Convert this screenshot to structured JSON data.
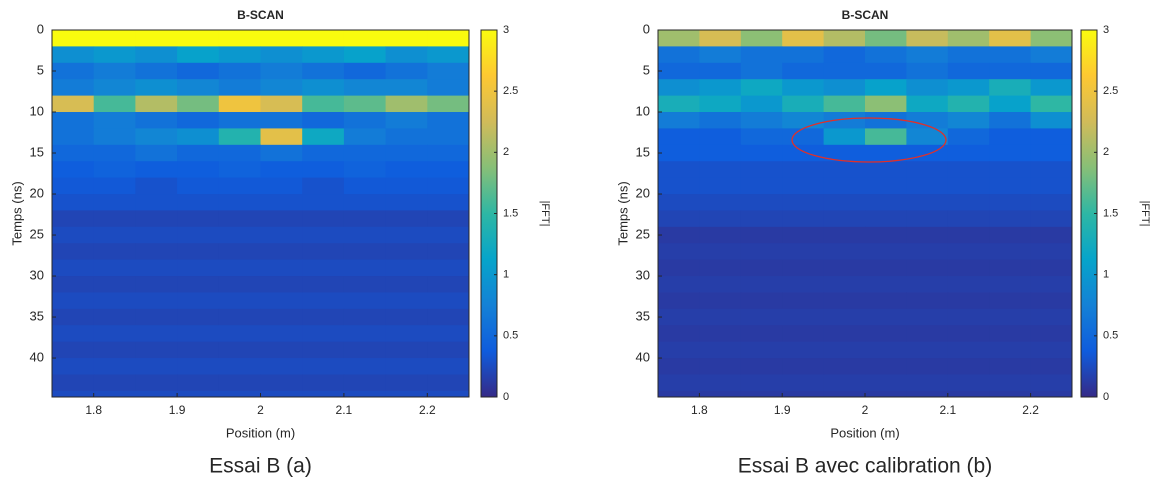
{
  "chart_data": [
    {
      "type": "heatmap",
      "title": "B-SCAN",
      "xlabel": "Position (m)",
      "ylabel": "Temps (ns)",
      "colorbar_label": "|FFT|",
      "caption": "Essai B (a)",
      "colormap": "parula",
      "y_reversed": true,
      "xlim": [
        1.75,
        2.25
      ],
      "ylim": [
        0,
        44.75
      ],
      "xticks": [
        1.8,
        1.9,
        2,
        2.1,
        2.2
      ],
      "yticks": [
        0,
        5,
        10,
        15,
        20,
        25,
        30,
        35,
        40
      ],
      "clim": [
        0,
        3
      ],
      "cticks": [
        0,
        0.5,
        1,
        1.5,
        2,
        2.5,
        3
      ],
      "x": [
        1.775,
        1.825,
        1.875,
        1.925,
        1.975,
        2.025,
        2.075,
        2.125,
        2.175,
        2.225
      ],
      "y": [
        1,
        3,
        5,
        7,
        9,
        11,
        13,
        15,
        17,
        19,
        21,
        23,
        25,
        27,
        29,
        31,
        33,
        35,
        37,
        39,
        41,
        43,
        45
      ],
      "z": [
        [
          3,
          3,
          3,
          3,
          3,
          3,
          3,
          3,
          3,
          3
        ],
        [
          0.9,
          1.0,
          0.9,
          1.1,
          1.0,
          0.9,
          1.0,
          1.1,
          0.9,
          1.0
        ],
        [
          0.6,
          0.7,
          0.6,
          0.5,
          0.6,
          0.7,
          0.6,
          0.5,
          0.6,
          0.7
        ],
        [
          0.7,
          0.8,
          0.9,
          0.8,
          0.7,
          0.8,
          0.9,
          0.8,
          0.8,
          0.7
        ],
        [
          2.3,
          1.6,
          2.1,
          1.8,
          2.5,
          2.3,
          1.6,
          1.7,
          2.0,
          1.8
        ],
        [
          0.6,
          0.7,
          0.6,
          0.5,
          0.6,
          0.6,
          0.5,
          0.6,
          0.7,
          0.6
        ],
        [
          0.6,
          0.7,
          0.8,
          0.9,
          1.4,
          2.4,
          1.2,
          0.7,
          0.6,
          0.6
        ],
        [
          0.5,
          0.5,
          0.6,
          0.5,
          0.5,
          0.6,
          0.5,
          0.5,
          0.5,
          0.5
        ],
        [
          0.4,
          0.45,
          0.4,
          0.4,
          0.45,
          0.4,
          0.4,
          0.45,
          0.4,
          0.4
        ],
        [
          0.35,
          0.35,
          0.3,
          0.35,
          0.35,
          0.35,
          0.3,
          0.35,
          0.35,
          0.35
        ],
        [
          0.3,
          0.3,
          0.3,
          0.3,
          0.3,
          0.3,
          0.3,
          0.3,
          0.3,
          0.3
        ],
        [
          0.2,
          0.2,
          0.2,
          0.2,
          0.2,
          0.2,
          0.2,
          0.2,
          0.2,
          0.2
        ],
        [
          0.25,
          0.25,
          0.25,
          0.25,
          0.25,
          0.25,
          0.25,
          0.25,
          0.25,
          0.25
        ],
        [
          0.2,
          0.2,
          0.2,
          0.2,
          0.2,
          0.2,
          0.2,
          0.2,
          0.2,
          0.2
        ],
        [
          0.25,
          0.25,
          0.25,
          0.25,
          0.25,
          0.25,
          0.25,
          0.25,
          0.25,
          0.25
        ],
        [
          0.2,
          0.2,
          0.2,
          0.2,
          0.2,
          0.2,
          0.2,
          0.2,
          0.2,
          0.2
        ],
        [
          0.25,
          0.25,
          0.25,
          0.25,
          0.25,
          0.25,
          0.25,
          0.25,
          0.25,
          0.25
        ],
        [
          0.2,
          0.2,
          0.2,
          0.2,
          0.2,
          0.2,
          0.2,
          0.2,
          0.2,
          0.2
        ],
        [
          0.25,
          0.25,
          0.25,
          0.25,
          0.25,
          0.25,
          0.25,
          0.25,
          0.25,
          0.25
        ],
        [
          0.2,
          0.2,
          0.2,
          0.2,
          0.2,
          0.2,
          0.2,
          0.2,
          0.2,
          0.2
        ],
        [
          0.25,
          0.25,
          0.25,
          0.25,
          0.25,
          0.25,
          0.25,
          0.25,
          0.25,
          0.25
        ],
        [
          0.2,
          0.2,
          0.2,
          0.2,
          0.2,
          0.2,
          0.2,
          0.2,
          0.2,
          0.2
        ],
        [
          0.25,
          0.25,
          0.25,
          0.25,
          0.25,
          0.25,
          0.25,
          0.25,
          0.25,
          0.25
        ]
      ]
    },
    {
      "type": "heatmap",
      "title": "B-SCAN",
      "xlabel": "Position (m)",
      "ylabel": "Temps (ns)",
      "colorbar_label": "|FFT|",
      "caption": "Essai B avec calibration (b)",
      "colormap": "parula",
      "y_reversed": true,
      "xlim": [
        1.75,
        2.25
      ],
      "ylim": [
        0,
        44.75
      ],
      "xticks": [
        1.8,
        1.9,
        2,
        2.1,
        2.2
      ],
      "yticks": [
        0,
        5,
        10,
        15,
        20,
        25,
        30,
        35,
        40
      ],
      "clim": [
        0,
        3
      ],
      "cticks": [
        0,
        0.5,
        1,
        1.5,
        2,
        2.5,
        3
      ],
      "x": [
        1.775,
        1.825,
        1.875,
        1.925,
        1.975,
        2.025,
        2.075,
        2.125,
        2.175,
        2.225
      ],
      "y": [
        1,
        3,
        5,
        7,
        9,
        11,
        13,
        15,
        17,
        19,
        21,
        23,
        25,
        27,
        29,
        31,
        33,
        35,
        37,
        39,
        41,
        43,
        45
      ],
      "z": [
        [
          2.0,
          2.3,
          1.9,
          2.4,
          2.1,
          1.8,
          2.2,
          2.0,
          2.4,
          1.9
        ],
        [
          0.6,
          0.7,
          0.6,
          0.6,
          0.5,
          0.6,
          0.7,
          0.6,
          0.6,
          0.7
        ],
        [
          0.5,
          0.5,
          0.6,
          0.5,
          0.5,
          0.5,
          0.6,
          0.5,
          0.5,
          0.5
        ],
        [
          0.9,
          1.0,
          1.2,
          1.0,
          0.9,
          1.1,
          0.9,
          1.0,
          1.3,
          1.0
        ],
        [
          1.3,
          1.2,
          1.0,
          1.3,
          1.6,
          1.9,
          1.2,
          1.4,
          1.1,
          1.5
        ],
        [
          0.7,
          0.6,
          0.7,
          0.8,
          0.7,
          0.6,
          0.7,
          0.8,
          0.6,
          0.9
        ],
        [
          0.4,
          0.4,
          0.5,
          0.5,
          1.0,
          1.6,
          0.8,
          0.5,
          0.4,
          0.4
        ],
        [
          0.4,
          0.4,
          0.4,
          0.4,
          0.4,
          0.4,
          0.4,
          0.4,
          0.4,
          0.4
        ],
        [
          0.3,
          0.3,
          0.3,
          0.3,
          0.3,
          0.3,
          0.3,
          0.3,
          0.3,
          0.3
        ],
        [
          0.3,
          0.3,
          0.3,
          0.3,
          0.3,
          0.3,
          0.3,
          0.3,
          0.3,
          0.3
        ],
        [
          0.25,
          0.25,
          0.25,
          0.25,
          0.25,
          0.25,
          0.25,
          0.25,
          0.25,
          0.25
        ],
        [
          0.2,
          0.2,
          0.2,
          0.2,
          0.2,
          0.2,
          0.2,
          0.2,
          0.2,
          0.2
        ],
        [
          0.12,
          0.12,
          0.12,
          0.12,
          0.12,
          0.12,
          0.12,
          0.12,
          0.12,
          0.12
        ],
        [
          0.15,
          0.15,
          0.15,
          0.15,
          0.15,
          0.15,
          0.15,
          0.15,
          0.15,
          0.15
        ],
        [
          0.12,
          0.12,
          0.12,
          0.12,
          0.12,
          0.12,
          0.12,
          0.12,
          0.12,
          0.12
        ],
        [
          0.15,
          0.15,
          0.15,
          0.15,
          0.15,
          0.15,
          0.15,
          0.15,
          0.15,
          0.15
        ],
        [
          0.12,
          0.12,
          0.12,
          0.12,
          0.12,
          0.12,
          0.12,
          0.12,
          0.12,
          0.12
        ],
        [
          0.15,
          0.15,
          0.15,
          0.15,
          0.15,
          0.15,
          0.15,
          0.15,
          0.15,
          0.15
        ],
        [
          0.12,
          0.12,
          0.12,
          0.12,
          0.12,
          0.12,
          0.12,
          0.12,
          0.12,
          0.12
        ],
        [
          0.15,
          0.15,
          0.15,
          0.15,
          0.15,
          0.15,
          0.15,
          0.15,
          0.15,
          0.15
        ],
        [
          0.12,
          0.12,
          0.12,
          0.12,
          0.12,
          0.12,
          0.12,
          0.12,
          0.12,
          0.12
        ],
        [
          0.15,
          0.15,
          0.15,
          0.15,
          0.15,
          0.15,
          0.15,
          0.15,
          0.15,
          0.15
        ],
        [
          0.12,
          0.12,
          0.12,
          0.12,
          0.12,
          0.12,
          0.12,
          0.12,
          0.12,
          0.12
        ]
      ]
    }
  ]
}
